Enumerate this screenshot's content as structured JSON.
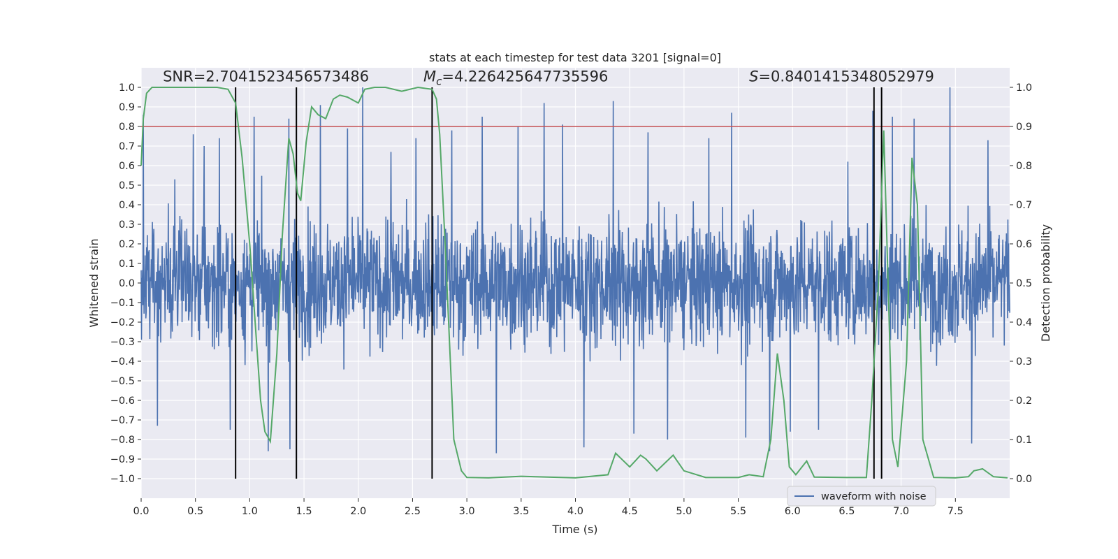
{
  "chart_data": {
    "type": "line",
    "title": "stats at each timestep for test data 3201 [signal=0]",
    "xlabel": "Time (s)",
    "ylabel": "Whitened strain",
    "y2label": "Detection probability",
    "xlim": [
      0.0,
      8.0
    ],
    "ylim": [
      -1.1,
      1.1
    ],
    "y2lim": [
      -0.05,
      1.05
    ],
    "grid": true,
    "x_ticks": [
      0.0,
      0.5,
      1.0,
      1.5,
      2.0,
      2.5,
      3.0,
      3.5,
      4.0,
      4.5,
      5.0,
      5.5,
      6.0,
      6.5,
      7.0,
      7.5
    ],
    "x_tick_labels": [
      "0.0",
      "0.5",
      "1.0",
      "1.5",
      "2.0",
      "2.5",
      "3.0",
      "3.5",
      "4.0",
      "4.5",
      "5.0",
      "5.5",
      "6.0",
      "6.5",
      "7.0",
      "7.5"
    ],
    "y_ticks": [
      -1.0,
      -0.9,
      -0.8,
      -0.7,
      -0.6,
      -0.5,
      -0.4,
      -0.3,
      -0.2,
      -0.1,
      0.0,
      0.1,
      0.2,
      0.3,
      0.4,
      0.5,
      0.6,
      0.7,
      0.8,
      0.9,
      1.0
    ],
    "y_tick_labels": [
      "−1.0",
      "−0.9",
      "−0.8",
      "−0.7",
      "−0.6",
      "−0.5",
      "−0.4",
      "−0.3",
      "−0.2",
      "−0.1",
      "0.0",
      "0.1",
      "0.2",
      "0.3",
      "0.4",
      "0.5",
      "0.6",
      "0.7",
      "0.8",
      "0.9",
      "1.0"
    ],
    "y2_ticks": [
      0.0,
      0.1,
      0.2,
      0.3,
      0.4,
      0.5,
      0.6,
      0.7,
      0.8,
      0.9,
      1.0
    ],
    "y2_tick_labels": [
      "0.0",
      "0.1",
      "0.2",
      "0.3",
      "0.4",
      "0.5",
      "0.6",
      "0.7",
      "0.8",
      "0.9",
      "1.0"
    ],
    "threshold": {
      "y2": 0.9,
      "color": "#c44e52"
    },
    "vlines": [
      0.87,
      1.43,
      2.68,
      6.75,
      6.82
    ],
    "vline_color": "#000000",
    "vline_y2_range": [
      0.0,
      1.0
    ],
    "annotations": {
      "snr": {
        "text": "SNR=2.7041523456573486",
        "x": 0.2,
        "y": 1.03
      },
      "mc": {
        "prefix": "M",
        "sub": "c",
        "text": "=4.226425647735596",
        "x": 2.6,
        "y": 1.03
      },
      "s": {
        "prefix": "S",
        "text": "=0.8401415348052979",
        "x": 5.6,
        "y": 1.03
      }
    },
    "series": [
      {
        "name": "waveform with noise",
        "color": "#4c72b0",
        "axis": "left",
        "style": "dense-noise",
        "envelope_typical": [
          -0.45,
          0.45
        ],
        "peak_points": [
          [
            0.02,
            0.86
          ],
          [
            0.15,
            -0.73
          ],
          [
            0.31,
            0.53
          ],
          [
            0.48,
            0.76
          ],
          [
            0.58,
            0.7
          ],
          [
            0.72,
            0.74
          ],
          [
            0.82,
            -0.75
          ],
          [
            1.04,
            0.85
          ],
          [
            1.17,
            -0.86
          ],
          [
            1.36,
            0.84
          ],
          [
            1.37,
            -0.85
          ],
          [
            1.65,
            0.91
          ],
          [
            1.9,
            0.79
          ],
          [
            2.04,
            1.0
          ],
          [
            2.3,
            0.67
          ],
          [
            2.53,
            0.74
          ],
          [
            2.86,
            0.78
          ],
          [
            3.14,
            0.85
          ],
          [
            3.27,
            -0.87
          ],
          [
            3.47,
            0.8
          ],
          [
            3.71,
            0.92
          ],
          [
            3.88,
            0.81
          ],
          [
            4.08,
            -0.84
          ],
          [
            4.35,
            0.93
          ],
          [
            4.54,
            -0.77
          ],
          [
            4.67,
            0.77
          ],
          [
            4.85,
            -0.8
          ],
          [
            5.23,
            0.74
          ],
          [
            5.44,
            0.87
          ],
          [
            5.57,
            -0.79
          ],
          [
            5.79,
            -0.86
          ],
          [
            5.98,
            -0.76
          ],
          [
            6.24,
            -0.75
          ],
          [
            6.51,
            0.62
          ],
          [
            6.74,
            0.88
          ],
          [
            6.92,
            0.85
          ],
          [
            7.12,
            0.84
          ],
          [
            7.45,
            1.0
          ],
          [
            7.65,
            -0.82
          ],
          [
            7.8,
            0.73
          ]
        ]
      },
      {
        "name": "detection probability",
        "color": "#55a868",
        "axis": "right",
        "points": [
          [
            0.0,
            0.8
          ],
          [
            0.02,
            0.92
          ],
          [
            0.05,
            0.985
          ],
          [
            0.1,
            1.0
          ],
          [
            0.3,
            1.0
          ],
          [
            0.5,
            1.0
          ],
          [
            0.7,
            1.0
          ],
          [
            0.8,
            0.995
          ],
          [
            0.87,
            0.96
          ],
          [
            0.93,
            0.82
          ],
          [
            1.0,
            0.6
          ],
          [
            1.05,
            0.4
          ],
          [
            1.1,
            0.2
          ],
          [
            1.14,
            0.12
          ],
          [
            1.19,
            0.095
          ],
          [
            1.25,
            0.32
          ],
          [
            1.3,
            0.62
          ],
          [
            1.36,
            0.87
          ],
          [
            1.4,
            0.83
          ],
          [
            1.44,
            0.73
          ],
          [
            1.47,
            0.71
          ],
          [
            1.52,
            0.86
          ],
          [
            1.57,
            0.95
          ],
          [
            1.63,
            0.93
          ],
          [
            1.7,
            0.92
          ],
          [
            1.77,
            0.97
          ],
          [
            1.83,
            0.98
          ],
          [
            1.9,
            0.975
          ],
          [
            2.0,
            0.96
          ],
          [
            2.06,
            0.995
          ],
          [
            2.15,
            1.0
          ],
          [
            2.25,
            1.0
          ],
          [
            2.4,
            0.99
          ],
          [
            2.55,
            1.0
          ],
          [
            2.68,
            0.995
          ],
          [
            2.72,
            0.97
          ],
          [
            2.75,
            0.88
          ],
          [
            2.8,
            0.6
          ],
          [
            2.88,
            0.1
          ],
          [
            2.95,
            0.02
          ],
          [
            3.0,
            0.003
          ],
          [
            3.2,
            0.002
          ],
          [
            3.5,
            0.006
          ],
          [
            4.0,
            0.002
          ],
          [
            4.3,
            0.01
          ],
          [
            4.37,
            0.065
          ],
          [
            4.5,
            0.03
          ],
          [
            4.6,
            0.06
          ],
          [
            4.65,
            0.05
          ],
          [
            4.75,
            0.02
          ],
          [
            4.9,
            0.06
          ],
          [
            5.0,
            0.02
          ],
          [
            5.2,
            0.003
          ],
          [
            5.5,
            0.003
          ],
          [
            5.6,
            0.01
          ],
          [
            5.73,
            0.005
          ],
          [
            5.8,
            0.1
          ],
          [
            5.86,
            0.32
          ],
          [
            5.92,
            0.2
          ],
          [
            5.97,
            0.03
          ],
          [
            6.03,
            0.01
          ],
          [
            6.13,
            0.045
          ],
          [
            6.2,
            0.004
          ],
          [
            6.5,
            0.003
          ],
          [
            6.68,
            0.003
          ],
          [
            6.73,
            0.2
          ],
          [
            6.79,
            0.49
          ],
          [
            6.84,
            0.89
          ],
          [
            6.88,
            0.5
          ],
          [
            6.92,
            0.1
          ],
          [
            6.97,
            0.03
          ],
          [
            7.05,
            0.3
          ],
          [
            7.1,
            0.82
          ],
          [
            7.15,
            0.7
          ],
          [
            7.2,
            0.1
          ],
          [
            7.3,
            0.003
          ],
          [
            7.5,
            0.002
          ],
          [
            7.62,
            0.005
          ],
          [
            7.67,
            0.02
          ],
          [
            7.75,
            0.025
          ],
          [
            7.85,
            0.005
          ],
          [
            7.98,
            0.002
          ]
        ]
      }
    ],
    "legend": {
      "position": "bottom-right",
      "entries": [
        "waveform with noise"
      ]
    }
  }
}
